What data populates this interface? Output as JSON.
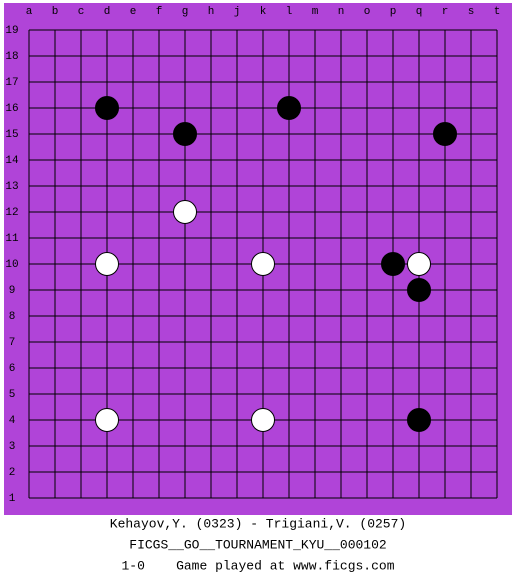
{
  "board": {
    "columns": [
      "a",
      "b",
      "c",
      "d",
      "e",
      "f",
      "g",
      "h",
      "j",
      "k",
      "l",
      "m",
      "n",
      "o",
      "p",
      "q",
      "r",
      "s",
      "t"
    ],
    "rows": [
      19,
      18,
      17,
      16,
      15,
      14,
      13,
      12,
      11,
      10,
      9,
      8,
      7,
      6,
      5,
      4,
      3,
      2,
      1
    ],
    "stones": [
      {
        "color": "black",
        "col": "d",
        "row": 16
      },
      {
        "color": "black",
        "col": "l",
        "row": 16
      },
      {
        "color": "black",
        "col": "g",
        "row": 15
      },
      {
        "color": "black",
        "col": "r",
        "row": 15
      },
      {
        "color": "white",
        "col": "g",
        "row": 12
      },
      {
        "color": "white",
        "col": "d",
        "row": 10
      },
      {
        "color": "white",
        "col": "k",
        "row": 10
      },
      {
        "color": "black",
        "col": "p",
        "row": 10
      },
      {
        "color": "white",
        "col": "q",
        "row": 10
      },
      {
        "color": "black",
        "col": "q",
        "row": 9
      },
      {
        "color": "white",
        "col": "d",
        "row": 4
      },
      {
        "color": "white",
        "col": "k",
        "row": 4
      },
      {
        "color": "black",
        "col": "q",
        "row": 4
      }
    ]
  },
  "footer": {
    "players": "Kehayov,Y. (0323) - Trigiani,V. (0257)",
    "event": "FICGS__GO__TOURNAMENT_KYU__000102",
    "result": "1-0    Game played at www.ficgs.com"
  }
}
